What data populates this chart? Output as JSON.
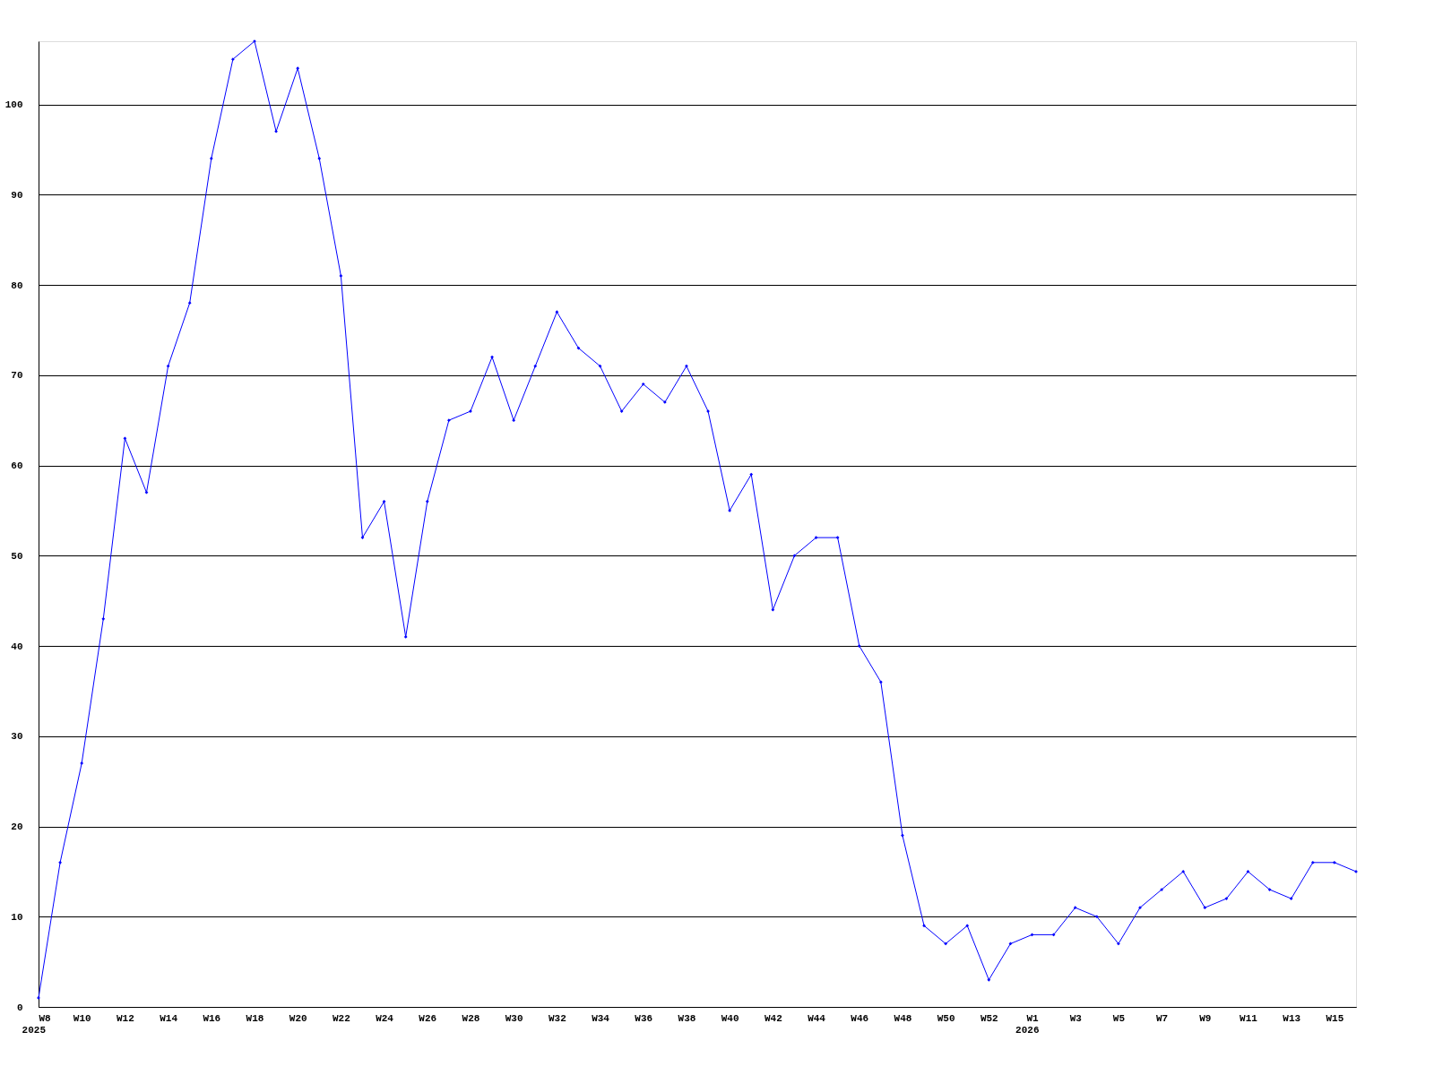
{
  "chart_data": {
    "type": "line",
    "categories": [
      "W8",
      null,
      "W10",
      null,
      "W12",
      null,
      "W14",
      null,
      "W16",
      null,
      "W18",
      null,
      "W20",
      null,
      "W22",
      null,
      "W24",
      null,
      "W26",
      null,
      "W28",
      null,
      "W30",
      null,
      "W32",
      null,
      "W34",
      null,
      "W36",
      null,
      "W38",
      null,
      "W40",
      null,
      "W42",
      null,
      "W44",
      null,
      "W46",
      null,
      "W48",
      null,
      "W50",
      null,
      "W52",
      null,
      "W1",
      null,
      "W3",
      null,
      "W5",
      null,
      "W7",
      null,
      "W9",
      null,
      "W11",
      null,
      "W13",
      null,
      "W15",
      null
    ],
    "series": [
      {
        "color": "#0000ff",
        "values": [
          1,
          16,
          27,
          43,
          63,
          57,
          71,
          78,
          94,
          105,
          107,
          97,
          104,
          94,
          81,
          52,
          56,
          41,
          56,
          65,
          66,
          72,
          65,
          71,
          77,
          73,
          71,
          66,
          69,
          67,
          71,
          66,
          55,
          59,
          44,
          50,
          52,
          52,
          40,
          36,
          19,
          9,
          7,
          9,
          3,
          7,
          8,
          8,
          11,
          10,
          7,
          11,
          13,
          15,
          11,
          12,
          15,
          13,
          12,
          16,
          16,
          15
        ]
      }
    ],
    "ylim": [
      0,
      107
    ],
    "yticks": [
      0,
      10,
      20,
      30,
      40,
      50,
      60,
      70,
      80,
      90,
      100
    ],
    "grid": "y",
    "marker": "diamond",
    "line_style": "solid",
    "annotations": [
      "2025",
      "2026"
    ]
  }
}
